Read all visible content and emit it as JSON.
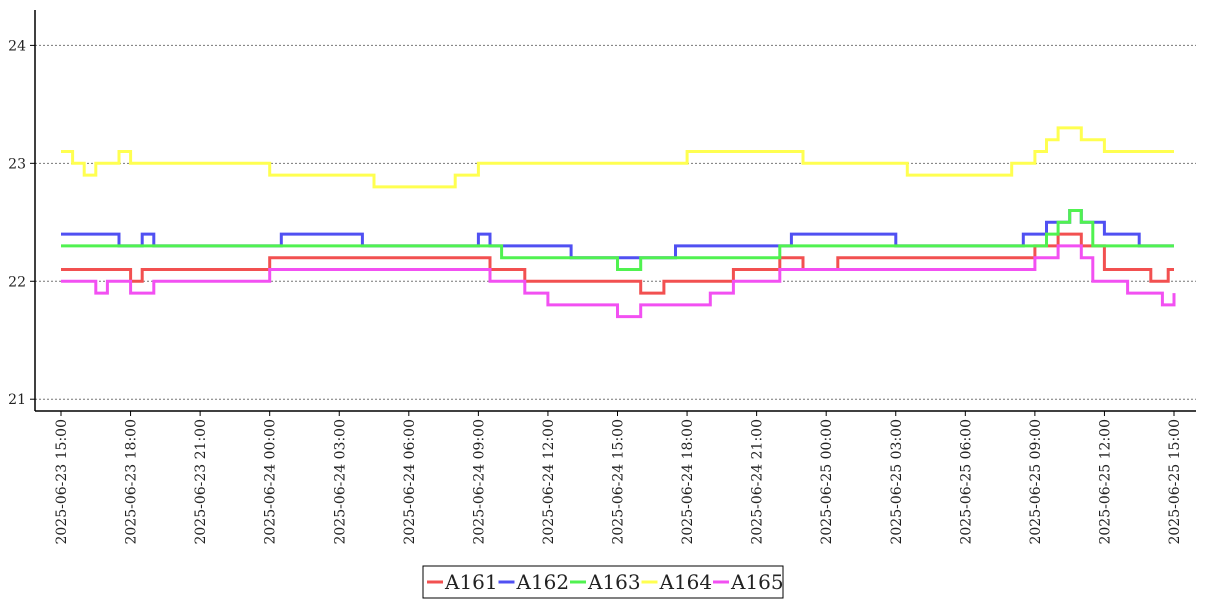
{
  "chart_data": {
    "type": "line",
    "title": "",
    "xlabel": "",
    "ylabel": "",
    "ylim": [
      20.9,
      24.3
    ],
    "yticks": [
      21,
      22,
      23,
      24
    ],
    "grid": "horizontal dotted",
    "legend_position": "bottom-center",
    "x_range": [
      "2025-06-23 15:00",
      "2025-06-25 15:00"
    ],
    "x_ticks": [
      "2025-06-23 15:00",
      "2025-06-23 18:00",
      "2025-06-23 21:00",
      "2025-06-24 00:00",
      "2025-06-24 03:00",
      "2025-06-24 06:00",
      "2025-06-24 09:00",
      "2025-06-24 12:00",
      "2025-06-24 15:00",
      "2025-06-24 18:00",
      "2025-06-24 21:00",
      "2025-06-25 00:00",
      "2025-06-25 03:00",
      "2025-06-25 06:00",
      "2025-06-25 09:00",
      "2025-06-25 12:00",
      "2025-06-25 15:00"
    ],
    "series": [
      {
        "name": "A161",
        "color": "#f25050",
        "points": [
          [
            "2025-06-23 15:00",
            22.1
          ],
          [
            "2025-06-23 18:00",
            22.0
          ],
          [
            "2025-06-23 18:30",
            22.1
          ],
          [
            "2025-06-23 23:30",
            22.1
          ],
          [
            "2025-06-24 00:00",
            22.2
          ],
          [
            "2025-06-24 09:30",
            22.1
          ],
          [
            "2025-06-24 11:00",
            22.0
          ],
          [
            "2025-06-24 16:00",
            21.9
          ],
          [
            "2025-06-24 17:00",
            22.0
          ],
          [
            "2025-06-24 20:00",
            22.1
          ],
          [
            "2025-06-24 22:00",
            22.2
          ],
          [
            "2025-06-24 23:00",
            22.1
          ],
          [
            "2025-06-25 00:30",
            22.2
          ],
          [
            "2025-06-25 09:00",
            22.3
          ],
          [
            "2025-06-25 10:00",
            22.4
          ],
          [
            "2025-06-25 11:00",
            22.3
          ],
          [
            "2025-06-25 12:00",
            22.1
          ],
          [
            "2025-06-25 14:00",
            22.0
          ],
          [
            "2025-06-25 14:45",
            22.1
          ],
          [
            "2025-06-25 15:00",
            22.1
          ]
        ]
      },
      {
        "name": "A162",
        "color": "#5050f2",
        "points": [
          [
            "2025-06-23 15:00",
            22.4
          ],
          [
            "2025-06-23 16:00",
            22.4
          ],
          [
            "2025-06-23 17:30",
            22.3
          ],
          [
            "2025-06-23 18:30",
            22.4
          ],
          [
            "2025-06-23 19:00",
            22.3
          ],
          [
            "2025-06-24 00:30",
            22.4
          ],
          [
            "2025-06-24 04:00",
            22.3
          ],
          [
            "2025-06-24 09:00",
            22.4
          ],
          [
            "2025-06-24 09:30",
            22.3
          ],
          [
            "2025-06-24 13:00",
            22.2
          ],
          [
            "2025-06-24 17:30",
            22.3
          ],
          [
            "2025-06-24 22:30",
            22.4
          ],
          [
            "2025-06-25 03:00",
            22.3
          ],
          [
            "2025-06-25 08:30",
            22.4
          ],
          [
            "2025-06-25 09:30",
            22.5
          ],
          [
            "2025-06-25 10:30",
            22.6
          ],
          [
            "2025-06-25 11:00",
            22.5
          ],
          [
            "2025-06-25 12:00",
            22.4
          ],
          [
            "2025-06-25 13:30",
            22.3
          ],
          [
            "2025-06-25 15:00",
            22.3
          ]
        ]
      },
      {
        "name": "A163",
        "color": "#50f250",
        "points": [
          [
            "2025-06-23 15:00",
            22.3
          ],
          [
            "2025-06-24 09:30",
            22.3
          ],
          [
            "2025-06-24 10:00",
            22.2
          ],
          [
            "2025-06-24 15:00",
            22.1
          ],
          [
            "2025-06-24 16:00",
            22.2
          ],
          [
            "2025-06-24 22:00",
            22.3
          ],
          [
            "2025-06-25 09:00",
            22.3
          ],
          [
            "2025-06-25 09:30",
            22.4
          ],
          [
            "2025-06-25 10:00",
            22.5
          ],
          [
            "2025-06-25 10:30",
            22.6
          ],
          [
            "2025-06-25 11:00",
            22.5
          ],
          [
            "2025-06-25 11:30",
            22.3
          ],
          [
            "2025-06-25 15:00",
            22.3
          ]
        ]
      },
      {
        "name": "A164",
        "color": "#ffff50",
        "points": [
          [
            "2025-06-23 15:00",
            23.1
          ],
          [
            "2025-06-23 15:30",
            23.0
          ],
          [
            "2025-06-23 16:00",
            22.9
          ],
          [
            "2025-06-23 16:30",
            23.0
          ],
          [
            "2025-06-23 17:30",
            23.1
          ],
          [
            "2025-06-23 18:00",
            23.0
          ],
          [
            "2025-06-24 00:00",
            22.9
          ],
          [
            "2025-06-24 04:30",
            22.8
          ],
          [
            "2025-06-24 08:00",
            22.9
          ],
          [
            "2025-06-24 09:00",
            23.0
          ],
          [
            "2025-06-24 18:00",
            23.1
          ],
          [
            "2025-06-24 23:00",
            23.0
          ],
          [
            "2025-06-25 03:30",
            22.9
          ],
          [
            "2025-06-25 08:00",
            23.0
          ],
          [
            "2025-06-25 09:00",
            23.1
          ],
          [
            "2025-06-25 09:30",
            23.2
          ],
          [
            "2025-06-25 10:00",
            23.3
          ],
          [
            "2025-06-25 11:00",
            23.2
          ],
          [
            "2025-06-25 12:00",
            23.1
          ],
          [
            "2025-06-25 15:00",
            23.1
          ]
        ]
      },
      {
        "name": "A165",
        "color": "#f250f2",
        "points": [
          [
            "2025-06-23 15:00",
            22.0
          ],
          [
            "2025-06-23 16:30",
            21.9
          ],
          [
            "2025-06-23 17:00",
            22.0
          ],
          [
            "2025-06-23 18:00",
            21.9
          ],
          [
            "2025-06-23 19:00",
            22.0
          ],
          [
            "2025-06-24 00:00",
            22.1
          ],
          [
            "2025-06-24 09:30",
            22.0
          ],
          [
            "2025-06-24 11:00",
            21.9
          ],
          [
            "2025-06-24 12:00",
            21.8
          ],
          [
            "2025-06-24 15:00",
            21.7
          ],
          [
            "2025-06-24 16:00",
            21.8
          ],
          [
            "2025-06-24 19:00",
            21.9
          ],
          [
            "2025-06-24 20:00",
            22.0
          ],
          [
            "2025-06-24 22:00",
            22.1
          ],
          [
            "2025-06-25 09:00",
            22.2
          ],
          [
            "2025-06-25 10:00",
            22.3
          ],
          [
            "2025-06-25 11:00",
            22.2
          ],
          [
            "2025-06-25 11:30",
            22.0
          ],
          [
            "2025-06-25 13:00",
            21.9
          ],
          [
            "2025-06-25 14:30",
            21.8
          ],
          [
            "2025-06-25 15:00",
            21.9
          ]
        ]
      }
    ]
  }
}
